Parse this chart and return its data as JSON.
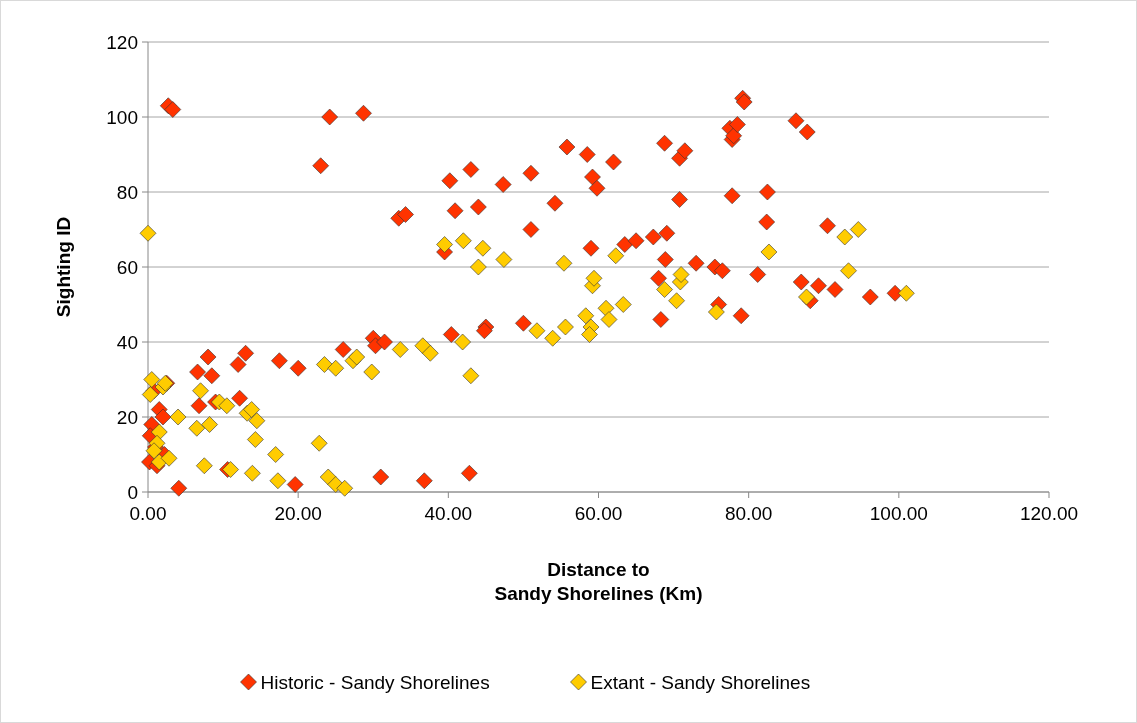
{
  "chart_data": {
    "type": "scatter",
    "xlabel": "Distance to\nSandy Shorelines (Km)",
    "ylabel": "Sighting ID",
    "xlim": [
      0,
      120
    ],
    "ylim": [
      0,
      120
    ],
    "xticks": [
      {
        "value": 0,
        "label": "0.00"
      },
      {
        "value": 20,
        "label": "20.00"
      },
      {
        "value": 40,
        "label": "40.00"
      },
      {
        "value": 60,
        "label": "60.00"
      },
      {
        "value": 80,
        "label": "80.00"
      },
      {
        "value": 100,
        "label": "100.00"
      },
      {
        "value": 120,
        "label": "120.00"
      }
    ],
    "yticks": [
      0,
      20,
      40,
      60,
      80,
      100,
      120
    ],
    "grid": "y",
    "legend": "bottom",
    "marker": "diamond",
    "series": [
      {
        "name": "Historic - Sandy Shorelines",
        "color": "#ff3300",
        "x": [
          2.7,
          3.3,
          24.2,
          28.7,
          23,
          33.4,
          34.3,
          39.5,
          40.2,
          40.9,
          43,
          44,
          47.3,
          51,
          51,
          54.2,
          55.8,
          58.5,
          59.2,
          59.8,
          62,
          59,
          63.5,
          65,
          67.3,
          69.1,
          68.9,
          68,
          68.3,
          68.8,
          70.8,
          71.5,
          70.8,
          73,
          75.5,
          76.5,
          76,
          77.5,
          77.8,
          78,
          78.5,
          79.2,
          79.4,
          77.8,
          79,
          82.5,
          82.4,
          81.2,
          86.3,
          87.8,
          87,
          88.2,
          89.3,
          90.5,
          91.5,
          96.2,
          99.5,
          40.4,
          45,
          44.8,
          50,
          36.8,
          42.8,
          31,
          19.6,
          4.1,
          30,
          30.3,
          31.5,
          26,
          20,
          17.5,
          13,
          12,
          12.2,
          8,
          8.5,
          6.6,
          6.8,
          9,
          10.6,
          2.5,
          1.5,
          2,
          0.5,
          0.3,
          0.2,
          1,
          1.2,
          2.2,
          0.8
        ],
        "values": [
          103,
          102,
          100,
          101,
          87,
          73,
          74,
          64,
          83,
          75,
          86,
          76,
          82,
          85,
          70,
          77,
          92,
          90,
          84,
          81,
          88,
          65,
          66,
          67,
          68,
          69,
          62,
          57,
          46,
          93,
          89,
          91,
          78,
          61,
          60,
          59,
          50,
          97,
          94,
          95,
          98,
          105,
          104,
          79,
          47,
          80,
          72,
          58,
          99,
          96,
          56,
          51,
          55,
          71,
          54,
          52,
          53,
          42,
          44,
          43,
          45,
          3,
          5,
          4,
          2,
          1,
          41,
          39,
          40,
          38,
          33,
          35,
          37,
          34,
          25,
          36,
          31,
          32,
          23,
          24,
          6,
          29,
          22,
          20,
          18,
          15,
          8,
          12,
          7,
          10,
          27
        ]
      },
      {
        "name": "Extant - Sandy Shorelines",
        "color": "#ffcc00",
        "x": [
          0,
          0.5,
          0.3,
          2,
          2.3,
          1.5,
          1.2,
          0.8,
          1.5,
          2.8,
          4,
          6.5,
          7,
          7.5,
          8.2,
          9.5,
          10.5,
          11,
          13.2,
          13.8,
          14.5,
          14.3,
          13.9,
          17,
          17.3,
          22.8,
          23.5,
          24,
          25,
          25,
          26.2,
          27.3,
          27.8,
          29.8,
          33.6,
          36.6,
          37.6,
          39.5,
          42,
          41.9,
          43,
          44,
          44.6,
          47.4,
          51.8,
          53.9,
          55.4,
          55.6,
          58.3,
          59,
          58.8,
          59.2,
          59.4,
          61,
          61.4,
          62.3,
          63.3,
          68.8,
          70.4,
          70.9,
          71,
          75.7,
          82.7,
          87.7,
          92.8,
          93.3,
          94.6,
          101
        ],
        "values": [
          69,
          30,
          26,
          28,
          29,
          16,
          13,
          11,
          8,
          9,
          20,
          17,
          27,
          7,
          18,
          24,
          23,
          6,
          21,
          22,
          19,
          14,
          5,
          10,
          3,
          13,
          34,
          4,
          33,
          2,
          1,
          35,
          36,
          32,
          38,
          39,
          37,
          66,
          67,
          40,
          31,
          60,
          65,
          62,
          43,
          41,
          61,
          44,
          47,
          44,
          42,
          55,
          57,
          49,
          46,
          63,
          50,
          54,
          51,
          56,
          58,
          48,
          64,
          52,
          68,
          59,
          70,
          53
        ]
      }
    ]
  }
}
